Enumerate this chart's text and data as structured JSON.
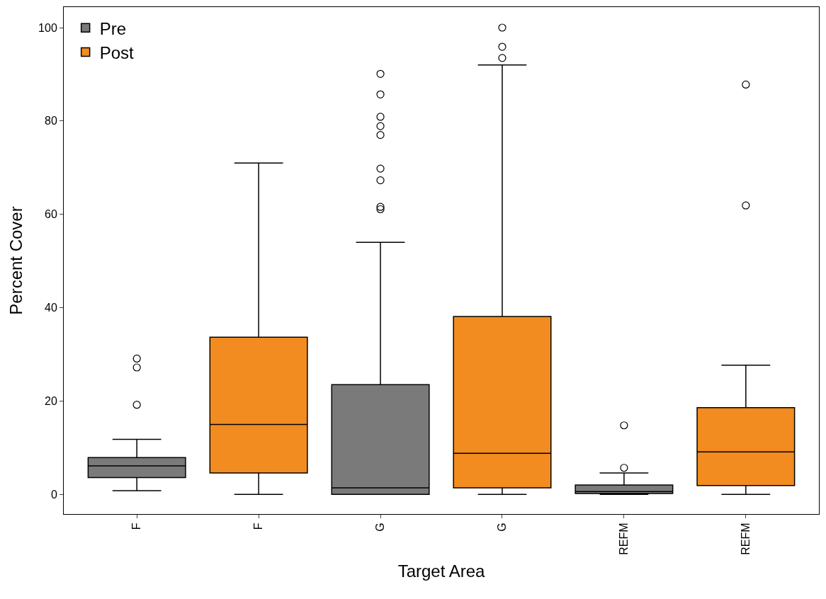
{
  "chart_data": {
    "type": "box",
    "xlabel": "Target Area",
    "ylabel": "Percent Cover",
    "categories": [
      "F",
      "F",
      "G",
      "G",
      "REFM",
      "REFM"
    ],
    "ylim": [
      -4.2,
      104.4
    ],
    "yticks": [
      0,
      20,
      40,
      60,
      80,
      100
    ],
    "legend": "top left",
    "series": [
      {
        "name": "Pre",
        "color": "#7a7a7a",
        "boxes": [
          {
            "low": 0.8,
            "q1": 3.6,
            "median": 6.1,
            "q3": 7.9,
            "high": 11.8,
            "outliers": [
              29.1,
              27.2,
              19.2
            ]
          },
          null,
          {
            "low": 0,
            "q1": 0,
            "median": 1.4,
            "q3": 23.5,
            "high": 54.0,
            "outliers": [
              90.1,
              85.7,
              80.9,
              78.9,
              77.0,
              69.8,
              67.3,
              61.6,
              61.1
            ]
          },
          null,
          {
            "low": 0,
            "q1": 0.2,
            "median": 0.6,
            "q3": 2.0,
            "high": 4.6,
            "outliers": [
              14.8,
              5.7
            ]
          },
          null
        ]
      },
      {
        "name": "Post",
        "color": "#f28c20",
        "boxes": [
          null,
          {
            "low": 0,
            "q1": 4.6,
            "median": 15.0,
            "q3": 33.7,
            "high": 71.0
          },
          null,
          {
            "low": 0,
            "q1": 1.4,
            "median": 8.8,
            "q3": 38.1,
            "high": 92.0,
            "outliers": [
              100,
              95.9,
              93.5
            ]
          },
          null,
          {
            "low": 0,
            "q1": 1.9,
            "median": 9.1,
            "q3": 18.6,
            "high": 27.7,
            "outliers": [
              87.8,
              61.9
            ]
          }
        ]
      }
    ]
  }
}
